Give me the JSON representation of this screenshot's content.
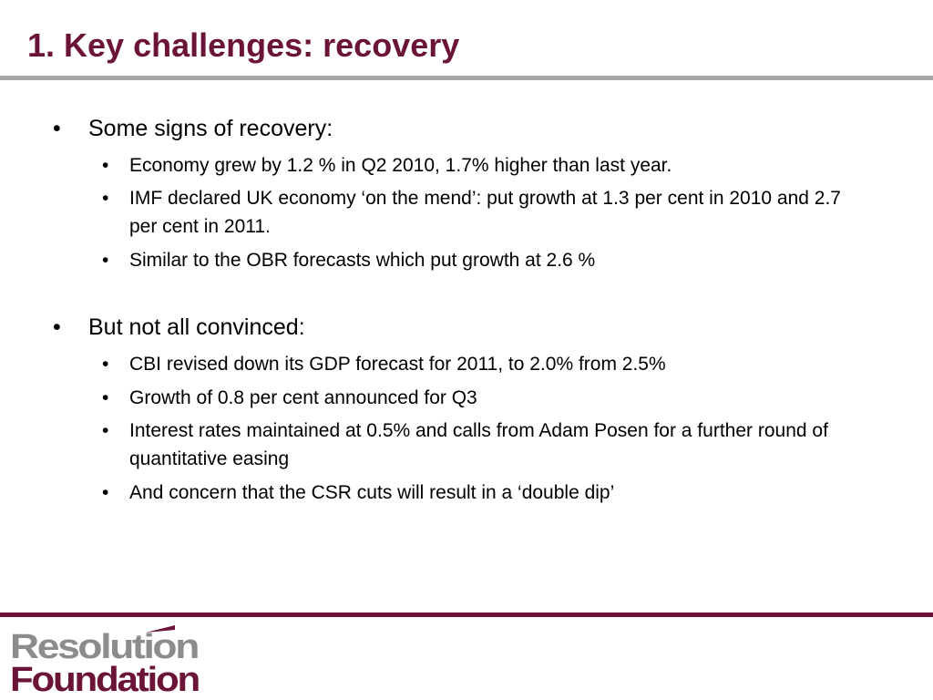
{
  "slide": {
    "title": "1. Key challenges: recovery"
  },
  "sections": [
    {
      "heading": "Some signs of recovery:",
      "items": [
        "Economy grew by 1.2 % in Q2 2010, 1.7% higher than last year.",
        "IMF declared UK economy ‘on the mend’: put growth at 1.3 per cent in 2010 and 2.7 per cent in 2011.",
        "Similar to the OBR forecasts which put growth at 2.6 %"
      ]
    },
    {
      "heading": "But not all convinced:",
      "items": [
        "CBI revised down its GDP forecast for 2011, to 2.0% from 2.5%",
        "Growth of 0.8 per cent announced for Q3",
        "Interest rates maintained at 0.5% and calls from Adam Posen for a further round of quantitative easing",
        "And concern that the CSR cuts will result in a ‘double dip’"
      ]
    }
  ],
  "bullet_symbol": "•",
  "logo": {
    "line1": "Resolution",
    "line2": "Foundation"
  },
  "colors": {
    "title": "#6b1438",
    "title_rule": "#a6a6a6",
    "footer_rule": "#6b1438",
    "logo_gray": "#8c8c8c",
    "logo_maroon": "#6b1438"
  }
}
